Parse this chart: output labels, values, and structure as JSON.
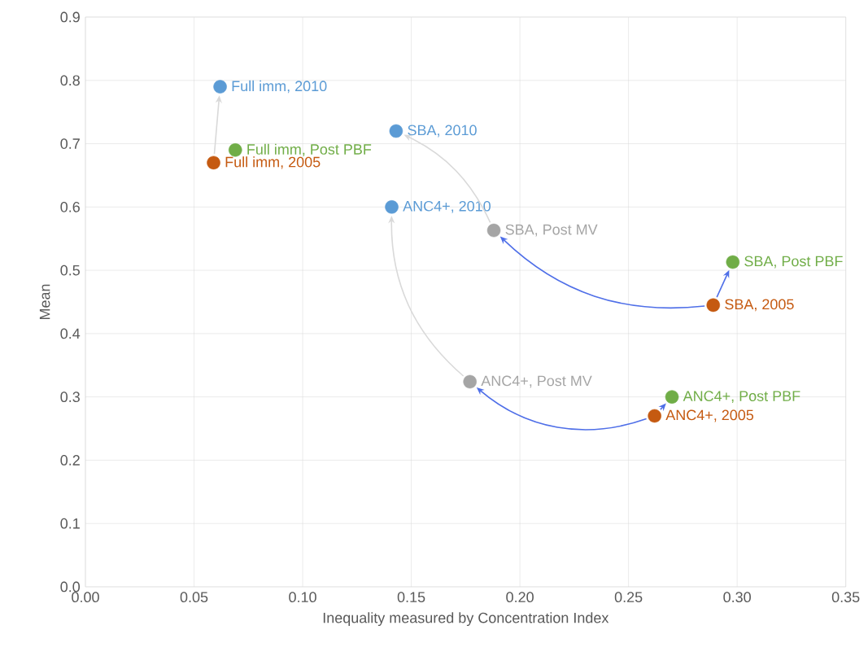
{
  "chart_data": {
    "type": "scatter",
    "xlabel": "Inequality measured by Concentration Index",
    "ylabel": "Mean",
    "xlim": [
      0,
      0.35
    ],
    "ylim": [
      0,
      0.9
    ],
    "xticks": [
      {
        "value": 0,
        "label": "0.00"
      },
      {
        "value": 0.05,
        "label": "0.05"
      },
      {
        "value": 0.1,
        "label": "0.10"
      },
      {
        "value": 0.15,
        "label": "0.15"
      },
      {
        "value": 0.2,
        "label": "0.20"
      },
      {
        "value": 0.25,
        "label": "0.25"
      },
      {
        "value": 0.3,
        "label": "0.30"
      },
      {
        "value": 0.35,
        "label": "0.35"
      }
    ],
    "yticks": [
      {
        "value": 0,
        "label": "0.0"
      },
      {
        "value": 0.1,
        "label": "0.1"
      },
      {
        "value": 0.2,
        "label": "0.2"
      },
      {
        "value": 0.3,
        "label": "0.3"
      },
      {
        "value": 0.4,
        "label": "0.4"
      },
      {
        "value": 0.5,
        "label": "0.5"
      },
      {
        "value": 0.6,
        "label": "0.6"
      },
      {
        "value": 0.7,
        "label": "0.7"
      },
      {
        "value": 0.8,
        "label": "0.8"
      },
      {
        "value": 0.9,
        "label": "0.9"
      }
    ],
    "grid": true,
    "marker": "circle",
    "series": [
      {
        "color": "#c55a11",
        "x": [
          0.059,
          0.289,
          0.262
        ],
        "values": [
          0.67,
          0.445,
          0.27
        ]
      },
      {
        "color": "#5b9bd5",
        "x": [
          0.062,
          0.143,
          0.141
        ],
        "values": [
          0.79,
          0.72,
          0.6
        ]
      },
      {
        "color": "#70ad47",
        "x": [
          0.069,
          0.298,
          0.27
        ],
        "values": [
          0.69,
          0.513,
          0.3
        ]
      },
      {
        "color": "#a5a5a5",
        "x": [
          0.188,
          0.177
        ],
        "values": [
          0.563,
          0.324
        ]
      }
    ],
    "annotations": [
      {
        "text": "Full imm, 2005",
        "x": 0.059,
        "y": 0.67
      },
      {
        "text": "SBA, 2005",
        "x": 0.289,
        "y": 0.445
      },
      {
        "text": "ANC4+, 2005",
        "x": 0.262,
        "y": 0.27
      },
      {
        "text": "Full imm, 2010",
        "x": 0.062,
        "y": 0.79
      },
      {
        "text": "SBA, 2010",
        "x": 0.143,
        "y": 0.72
      },
      {
        "text": "ANC4+, 2010",
        "x": 0.141,
        "y": 0.6
      },
      {
        "text": "Full imm, Post PBF",
        "x": 0.069,
        "y": 0.69
      },
      {
        "text": "SBA, Post PBF",
        "x": 0.298,
        "y": 0.513
      },
      {
        "text": "ANC4+, Post PBF",
        "x": 0.27,
        "y": 0.3
      },
      {
        "text": "SBA, Post MV",
        "x": 0.188,
        "y": 0.563
      },
      {
        "text": "ANC4+, Post MV",
        "x": 0.177,
        "y": 0.324
      }
    ]
  }
}
